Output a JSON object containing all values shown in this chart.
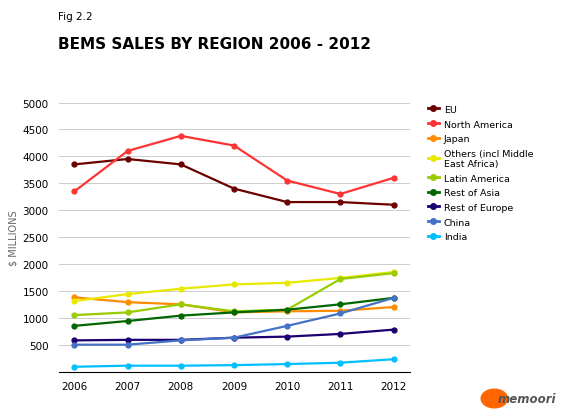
{
  "title": "BEMS SALES BY REGION 2006 - 2012",
  "subtitle": "Fig 2.2",
  "ylabel": "$ MILLIONS",
  "years": [
    2006,
    2007,
    2008,
    2009,
    2010,
    2011,
    2012
  ],
  "series": [
    {
      "label": "EU",
      "color": "#6B0000",
      "values": [
        3850,
        3950,
        3850,
        3400,
        3150,
        3150,
        3100
      ]
    },
    {
      "label": "North America",
      "color": "#FF3333",
      "values": [
        3350,
        4100,
        4380,
        4200,
        3550,
        3300,
        3600
      ]
    },
    {
      "label": "Japan",
      "color": "#FF8C00",
      "values": [
        1380,
        1290,
        1250,
        1100,
        1120,
        1130,
        1200
      ]
    },
    {
      "label": "Others (incl Middle\nEast Africa)",
      "color": "#E8E800",
      "values": [
        1310,
        1440,
        1540,
        1620,
        1650,
        1740,
        1850
      ]
    },
    {
      "label": "Latin America",
      "color": "#99CC00",
      "values": [
        1050,
        1100,
        1250,
        1120,
        1150,
        1720,
        1830
      ]
    },
    {
      "label": "Rest of Asia",
      "color": "#006600",
      "values": [
        850,
        940,
        1040,
        1100,
        1150,
        1250,
        1370
      ]
    },
    {
      "label": "Rest of Europe",
      "color": "#1A0070",
      "values": [
        580,
        590,
        590,
        630,
        650,
        700,
        780
      ]
    },
    {
      "label": "China",
      "color": "#4472C4",
      "values": [
        500,
        500,
        580,
        630,
        850,
        1080,
        1370
      ]
    },
    {
      "label": "India",
      "color": "#00BFFF",
      "values": [
        90,
        110,
        110,
        120,
        140,
        165,
        230
      ]
    }
  ],
  "ylim": [
    0,
    5000
  ],
  "yticks": [
    0,
    500,
    1000,
    1500,
    2000,
    2500,
    3000,
    3500,
    4000,
    4500,
    5000
  ],
  "background_color": "#FFFFFF",
  "grid_color": "#CCCCCC"
}
